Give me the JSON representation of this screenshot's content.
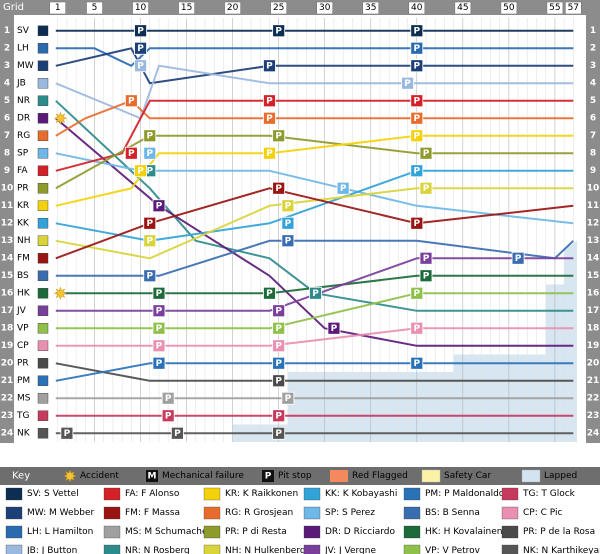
{
  "chart_data": {
    "type": "line",
    "grid_label": "Grid",
    "x_ticks": [
      1,
      5,
      10,
      15,
      20,
      25,
      30,
      35,
      40,
      45,
      50,
      55,
      57
    ],
    "positions": [
      1,
      2,
      3,
      4,
      5,
      6,
      7,
      8,
      9,
      10,
      11,
      12,
      13,
      14,
      15,
      16,
      17,
      18,
      19,
      20,
      21,
      22,
      23,
      24
    ],
    "grid_order": [
      "SV",
      "LH",
      "MW",
      "JB",
      "NR",
      "DR",
      "RG",
      "SP",
      "FA",
      "PR",
      "KR",
      "KK",
      "NH",
      "FM",
      "BS",
      "HK",
      "JV",
      "VP",
      "CP",
      "PR",
      "PM",
      "MS",
      "TG",
      "NK"
    ],
    "drivers": [
      {
        "code": "SV",
        "name": "S Vettel",
        "color": "#0d2d52",
        "grid": 1,
        "stops": [
          [
            9,
            1
          ],
          [
            10,
            1
          ],
          [
            24,
            1
          ],
          [
            40,
            1
          ],
          [
            41,
            1
          ],
          [
            57,
            1
          ]
        ],
        "pits": [
          [
            10,
            1
          ],
          [
            25,
            1
          ],
          [
            40,
            1
          ]
        ]
      },
      {
        "code": "LH",
        "name": "L Hamilton",
        "color": "#2a6bb0",
        "grid": 2,
        "stops": [
          [
            5,
            2
          ],
          [
            9,
            3
          ],
          [
            11,
            2
          ],
          [
            24,
            2
          ],
          [
            40,
            2
          ],
          [
            41,
            2
          ],
          [
            57,
            2
          ]
        ],
        "pits": [
          [
            10,
            2
          ],
          [
            40,
            2
          ]
        ]
      },
      {
        "code": "MW",
        "name": "M Webber",
        "color": "#1c3f78",
        "grid": 3,
        "stops": [
          [
            9,
            2
          ],
          [
            11,
            4
          ],
          [
            24,
            3
          ],
          [
            40,
            3
          ],
          [
            57,
            3
          ]
        ],
        "pits": [
          [
            10,
            2
          ],
          [
            24,
            3
          ],
          [
            40,
            3
          ]
        ]
      },
      {
        "code": "JB",
        "name": "J Button",
        "color": "#9bb8de",
        "grid": 4,
        "stops": [
          [
            10,
            6
          ],
          [
            12,
            3
          ],
          [
            24,
            4
          ],
          [
            39,
            4
          ],
          [
            57,
            4
          ]
        ],
        "pits": [
          [
            10,
            3
          ],
          [
            39,
            4
          ]
        ]
      },
      {
        "code": "NR",
        "name": "N Rosberg",
        "color": "#2e8b8b",
        "grid": 5,
        "stops": [
          [
            11,
            10
          ],
          [
            16,
            13
          ],
          [
            24,
            14
          ],
          [
            29,
            16
          ],
          [
            40,
            17
          ],
          [
            57,
            17
          ]
        ],
        "pits": [
          [
            11,
            9
          ],
          [
            29,
            16
          ]
        ]
      },
      {
        "code": "DR",
        "name": "D Ricciardo",
        "color": "#5b1a7a",
        "grid": 6,
        "stops": [
          [
            12,
            11
          ],
          [
            24,
            15
          ],
          [
            30,
            18
          ],
          [
            40,
            19
          ],
          [
            57,
            19
          ]
        ],
        "pits": [
          [
            12,
            11
          ],
          [
            31,
            18
          ]
        ]
      },
      {
        "code": "RG",
        "name": "R Grosjean",
        "color": "#e86c2c",
        "grid": 7,
        "stops": [
          [
            4,
            6
          ],
          [
            9,
            5
          ],
          [
            11,
            6
          ],
          [
            24,
            6
          ],
          [
            40,
            6
          ],
          [
            57,
            6
          ]
        ],
        "pits": [
          [
            9,
            5
          ],
          [
            24,
            6
          ],
          [
            40,
            6
          ]
        ]
      },
      {
        "code": "SP",
        "name": "S Perez",
        "color": "#6fb7e6",
        "grid": 8,
        "stops": [
          [
            10,
            9
          ],
          [
            24,
            9
          ],
          [
            32,
            10
          ],
          [
            40,
            11
          ],
          [
            57,
            12
          ]
        ],
        "pits": [
          [
            11,
            8
          ],
          [
            32,
            10
          ]
        ]
      },
      {
        "code": "FA",
        "name": "F Alonso",
        "color": "#d42027",
        "grid": 9,
        "stops": [
          [
            8,
            8
          ],
          [
            11,
            5
          ],
          [
            24,
            5
          ],
          [
            40,
            5
          ],
          [
            57,
            5
          ]
        ],
        "pits": [
          [
            9,
            8
          ],
          [
            24,
            5
          ],
          [
            40,
            5
          ]
        ]
      },
      {
        "code": "PR",
        "name": "P di Resta",
        "color": "#8f9a2c",
        "grid": 10,
        "stops": [
          [
            11,
            7
          ],
          [
            24,
            7
          ],
          [
            40,
            8
          ],
          [
            57,
            8
          ]
        ],
        "pits": [
          [
            11,
            7
          ],
          [
            25,
            7
          ],
          [
            41,
            8
          ]
        ]
      },
      {
        "code": "KR",
        "name": "K Raikkonen",
        "color": "#f4d20b",
        "grid": 11,
        "stops": [
          [
            9,
            10
          ],
          [
            12,
            8
          ],
          [
            24,
            8
          ],
          [
            40,
            7
          ],
          [
            57,
            7
          ]
        ],
        "pits": [
          [
            10,
            9
          ],
          [
            24,
            8
          ],
          [
            40,
            7
          ]
        ]
      },
      {
        "code": "KK",
        "name": "K Kobayashi",
        "color": "#32a3d8",
        "grid": 12,
        "stops": [
          [
            11,
            13
          ],
          [
            24,
            12
          ],
          [
            40,
            9
          ],
          [
            57,
            9
          ]
        ],
        "pits": [
          [
            11,
            12
          ],
          [
            26,
            12
          ],
          [
            40,
            9
          ]
        ]
      },
      {
        "code": "NH",
        "name": "N Hulkenberg",
        "color": "#d9d43a",
        "grid": 13,
        "stops": [
          [
            11,
            14
          ],
          [
            24,
            11
          ],
          [
            40,
            10
          ],
          [
            57,
            10
          ]
        ],
        "pits": [
          [
            11,
            13
          ],
          [
            26,
            11
          ],
          [
            41,
            10
          ]
        ]
      },
      {
        "code": "FM",
        "name": "F Massa",
        "color": "#9a1512",
        "grid": 14,
        "stops": [
          [
            11,
            12
          ],
          [
            24,
            10
          ],
          [
            40,
            12
          ],
          [
            57,
            11
          ]
        ],
        "pits": [
          [
            11,
            12
          ],
          [
            25,
            10
          ],
          [
            40,
            12
          ]
        ]
      },
      {
        "code": "BS",
        "name": "B Senna",
        "color": "#3a6db0",
        "grid": 15,
        "stops": [
          [
            12,
            15
          ],
          [
            24,
            13
          ],
          [
            40,
            13
          ],
          [
            55,
            14
          ],
          [
            57,
            13
          ]
        ],
        "pits": [
          [
            11,
            15
          ],
          [
            26,
            13
          ],
          [
            51,
            14
          ]
        ]
      },
      {
        "code": "HK",
        "name": "H Kovalainen",
        "color": "#1d6b3a",
        "grid": 16,
        "stops": [
          [
            11,
            16
          ],
          [
            24,
            16
          ],
          [
            40,
            15
          ],
          [
            57,
            15
          ]
        ],
        "pits": [
          [
            12,
            16
          ],
          [
            24,
            16
          ],
          [
            41,
            15
          ]
        ]
      },
      {
        "code": "JV",
        "name": "J Vergne",
        "color": "#7a3f9b",
        "grid": 17,
        "stops": [
          [
            11,
            17
          ],
          [
            24,
            17
          ],
          [
            40,
            14
          ],
          [
            57,
            14
          ]
        ],
        "pits": [
          [
            12,
            17
          ],
          [
            25,
            17
          ],
          [
            41,
            14
          ]
        ]
      },
      {
        "code": "VP",
        "name": "V Petrov",
        "color": "#8fc04a",
        "grid": 18,
        "stops": [
          [
            11,
            18
          ],
          [
            24,
            18
          ],
          [
            40,
            16
          ],
          [
            57,
            16
          ]
        ],
        "pits": [
          [
            12,
            18
          ],
          [
            25,
            18
          ],
          [
            40,
            16
          ]
        ]
      },
      {
        "code": "CP",
        "name": "C Pic",
        "color": "#e98fb2",
        "grid": 19,
        "stops": [
          [
            11,
            19
          ],
          [
            24,
            19
          ],
          [
            40,
            18
          ],
          [
            57,
            18
          ]
        ],
        "pits": [
          [
            12,
            19
          ],
          [
            25,
            19
          ],
          [
            40,
            18
          ]
        ]
      },
      {
        "code": "PR",
        "name": "P de la Rosa",
        "color": "#4a4a4a",
        "grid": 20,
        "stops": [
          [
            11,
            21
          ],
          [
            24,
            21
          ],
          [
            40,
            21
          ],
          [
            57,
            21
          ]
        ],
        "pits": [
          [
            12,
            20
          ],
          [
            25,
            21
          ]
        ]
      },
      {
        "code": "PM",
        "name": "P Maldonaldo",
        "color": "#2a72b8",
        "grid": 21,
        "stops": [
          [
            11,
            20
          ],
          [
            24,
            20
          ],
          [
            40,
            20
          ],
          [
            57,
            20
          ]
        ],
        "pits": [
          [
            12,
            20
          ],
          [
            25,
            20
          ],
          [
            40,
            20
          ]
        ]
      },
      {
        "code": "MS",
        "name": "M Schumacher",
        "color": "#a0a0a0",
        "grid": 22,
        "stops": [
          [
            11,
            22
          ],
          [
            24,
            22
          ],
          [
            40,
            22
          ],
          [
            57,
            22
          ]
        ],
        "pits": [
          [
            13,
            22
          ],
          [
            26,
            22
          ]
        ]
      },
      {
        "code": "TG",
        "name": "T Glock",
        "color": "#c63a5e",
        "grid": 23,
        "stops": [
          [
            11,
            23
          ],
          [
            24,
            23
          ],
          [
            40,
            23
          ],
          [
            57,
            23
          ]
        ],
        "pits": [
          [
            13,
            23
          ],
          [
            25,
            23
          ]
        ]
      },
      {
        "code": "NK",
        "name": "N Karthikeyan",
        "color": "#555555",
        "grid": 24,
        "stops": [
          [
            11,
            24
          ],
          [
            24,
            24
          ],
          [
            40,
            24
          ],
          [
            57,
            24
          ]
        ],
        "pits": [
          [
            2,
            24
          ],
          [
            14,
            24
          ],
          [
            25,
            24
          ]
        ]
      }
    ],
    "accidents": [
      6,
      16
    ],
    "legend": {
      "key": "Key",
      "accident": "Accident",
      "mechanical": "Mechanical failure",
      "pit": "Pit stop",
      "red_flag": "Red Flagged",
      "safety_car": "Safety Car",
      "lapped": "Lapped"
    },
    "symbols": {
      "mechanical": "M",
      "pit": "P",
      "accident_icon": "star-burst-icon"
    },
    "colors": {
      "header": "#8c8c8c",
      "key_header": "#6e6e6e",
      "red_flag": "#f4895e",
      "safety_car": "#fbf2a8",
      "lapped": "#d3e3f0",
      "grid_line": "#cccccc"
    }
  },
  "key_entries": [
    [
      "SV: S Vettel",
      "FA: F Alonso",
      "KR: K Raikkonen",
      "KK: K Kobayashi",
      "PM: P Maldonaldo",
      "TG: T Glock"
    ],
    [
      "MW: M Webber",
      "FM: F Massa",
      "RG: R Grosjean",
      "SP: S Perez",
      "BS: B Senna",
      "CP: C Pic"
    ],
    [
      "LH: L Hamilton",
      "MS: M Schumacher",
      "PR: P di Resta",
      "DR: D Ricciardo",
      "HK: H Kovalainen",
      "PR: P de la Rosa"
    ],
    [
      "JB: J Button",
      "NR: N Rosberg",
      "NH: N Hulkenberg",
      "JV: J Vergne",
      "VP: V Petrov",
      "NK: N Karthikeyan"
    ]
  ],
  "key_colors": [
    [
      "#0d2d52",
      "#d42027",
      "#f4d20b",
      "#32a3d8",
      "#2a72b8",
      "#c63a5e"
    ],
    [
      "#1c3f78",
      "#9a1512",
      "#e86c2c",
      "#6fb7e6",
      "#3a6db0",
      "#e98fb2"
    ],
    [
      "#2a6bb0",
      "#a0a0a0",
      "#8f9a2c",
      "#5b1a7a",
      "#1d6b3a",
      "#4a4a4a"
    ],
    [
      "#9bb8de",
      "#2e8b8b",
      "#d9d43a",
      "#7a3f9b",
      "#8fc04a",
      "#555555"
    ]
  ]
}
